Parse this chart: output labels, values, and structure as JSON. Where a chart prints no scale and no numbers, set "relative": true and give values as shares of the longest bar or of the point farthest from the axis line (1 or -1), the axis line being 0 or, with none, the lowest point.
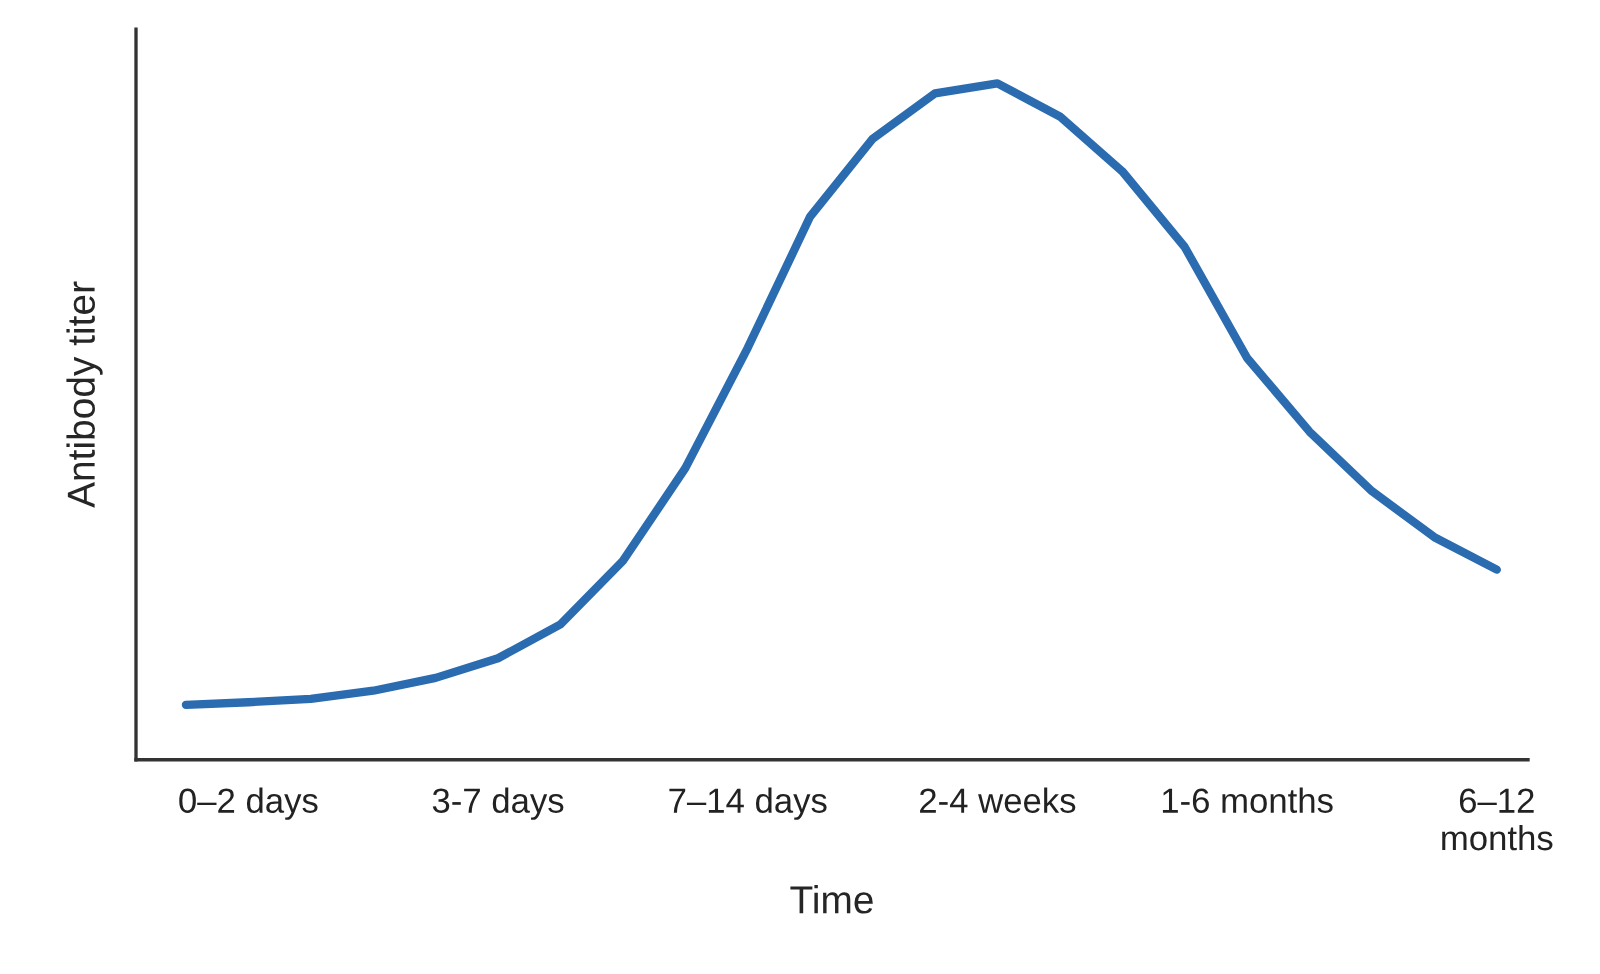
{
  "chart_data": {
    "type": "line",
    "relative": true,
    "xlabel": "Time",
    "ylabel": "Antibody titer",
    "categories": [
      null,
      "0–2 days",
      null,
      null,
      null,
      "3-7 days",
      null,
      null,
      null,
      "7–14 days",
      null,
      null,
      null,
      "2-4 weeks",
      null,
      null,
      null,
      "1-6 months",
      null,
      null,
      null,
      "6–12 months"
    ],
    "series": [
      {
        "color": "#2b6cb0",
        "values": [
          0.081,
          0.085,
          0.09,
          0.102,
          0.121,
          0.15,
          0.2,
          0.294,
          0.431,
          0.609,
          0.803,
          0.918,
          0.985,
          1,
          0.951,
          0.87,
          0.758,
          0.594,
          0.485,
          0.397,
          0.329,
          0.281
        ]
      }
    ],
    "grid": false,
    "marker": "none",
    "line_style": "solid"
  }
}
